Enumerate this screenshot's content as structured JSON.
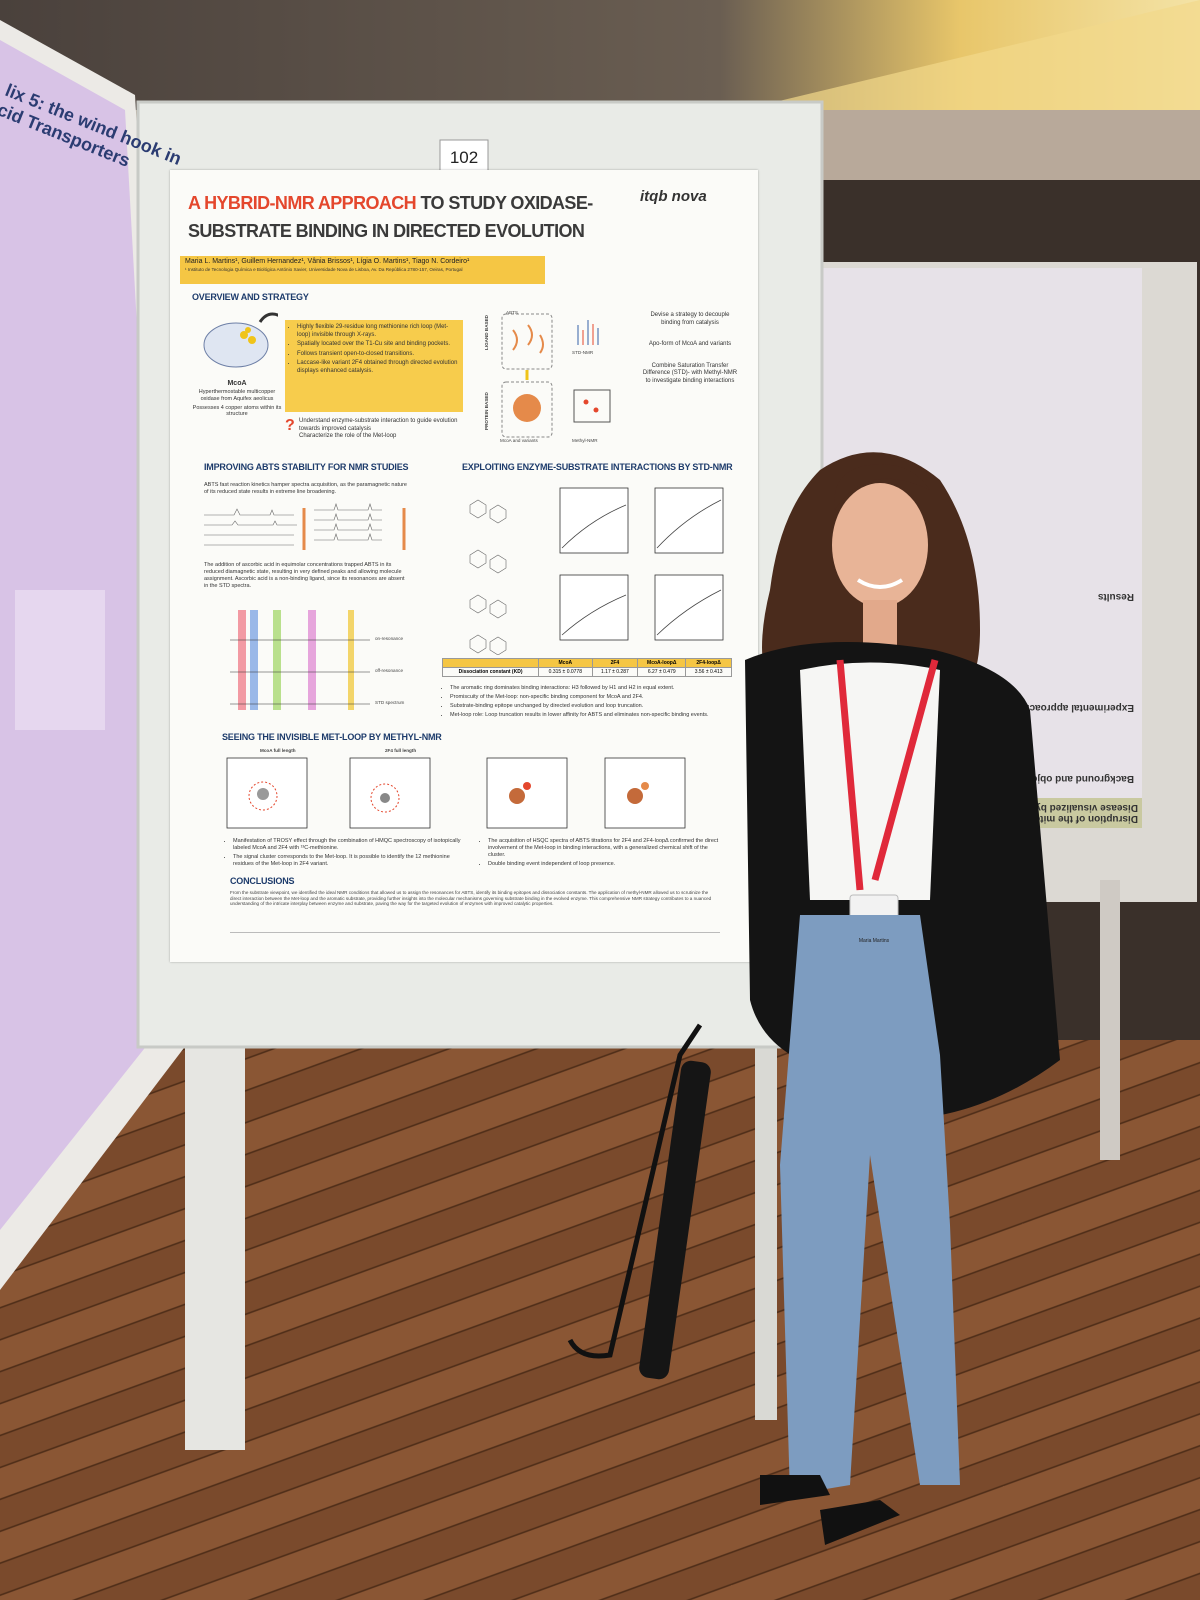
{
  "board_number": "102",
  "left_poster": {
    "title": [
      "lix 5: the wind hook in",
      "cid Transporters"
    ]
  },
  "poster": {
    "title": {
      "highlight": "A HYBRID-NMR APPROACH",
      "rest": "TO STUDY OXIDASE-SUBSTRATE BINDING IN DIRECTED EVOLUTION"
    },
    "logo": "itqb nova",
    "authors": "Maria L. Martins¹, Guillem Hernandez¹, Vânia Brissos¹, Lígia O. Martins¹, Tiago N. Cordeiro¹",
    "affiliation": "¹ Instituto de Tecnologia Química e Biológica António Xavier, Universidade Nova de Lisboa, Av. Da República 2780-157, Oeiras, Portugal",
    "overview": {
      "heading": "OVERVIEW AND STRATEGY",
      "protein": {
        "name": "McoA",
        "description": "Hyperthermostable multicopper oxidase from Aquifex aeolicus",
        "note": "Possesses 4 copper atoms within its structure"
      },
      "bullets": [
        "Highly flexible 29-residue long methionine rich loop (Met-loop) invisible through X-rays.",
        "Spatially located over the T1-Cu site and binding pockets.",
        "Follows transient open-to-closed transitions.",
        "Laccase-like variant 2F4 obtained through directed evolution displays enhanced catalysis."
      ],
      "questions": [
        "Understand enzyme-substrate interaction to guide evolution towards improved catalysis",
        "Characterize the role of the Met-loop"
      ],
      "strategy_labels": [
        "LIGAND BASED",
        "PROTEIN BASED"
      ],
      "figure_labels": [
        "ABTS",
        "STD-NMR",
        "McoA and variants",
        "Methyl-NMR"
      ],
      "strategy": [
        "Devise a strategy to decouple binding from catalysis",
        "Apo-form of McoA and variants",
        "Combine Saturation Transfer Difference (STD)- with Methyl-NMR to investigate binding interactions"
      ]
    },
    "abts": {
      "heading": "IMPROVING ABTS STABILITY FOR NMR STUDIES",
      "paragraphs": [
        "ABTS fast reaction kinetics hamper spectra acquisition, as the paramagnetic nature of its reduced state results in extreme line broadening.",
        "The addition of ascorbic acid in equimolar concentrations trapped ABTS in its reduced diamagnetic state, resulting in very defined peaks and allowing molecule assignment. Ascorbic acid is a non-binding ligand, since its resonances are absent in the STD spectra."
      ],
      "spectra_labels": [
        "on-resonance",
        "off-resonance",
        "STD spectrum"
      ]
    },
    "std": {
      "heading": "EXPLOITING ENZYME-SUBSTRATE INTERACTIONS BY STD-NMR",
      "table": {
        "header": "Dissociation constant (KD)",
        "columns": [
          "McoA",
          "2F4",
          "McoA-loopΔ",
          "2F4-loopΔ"
        ],
        "values": [
          "0.315 ± 0.0778",
          "1.17 ± 0.287",
          "6.27 ± 0.479",
          "3.56 ± 0.413"
        ]
      },
      "bullets": [
        "The aromatic ring dominates binding interactions: H3 followed by H1 and H2 in equal extent.",
        "Promiscuity of the Met-loop: non-specific binding component for McoA and 2F4.",
        "Substrate-binding epitope unchanged by directed evolution and loop truncation.",
        "Met-loop role: Loop truncation results in lower affinity for ABTS and eliminates non-specific binding events."
      ]
    },
    "methyl": {
      "heading": "SEEING THE INVISIBLE MET-LOOP BY METHYL-NMR",
      "panels": [
        "McoA full length",
        "2F4 full length"
      ],
      "bullets_left": [
        "Manifestation of TROSY effect through the combination of HMQC spectroscopy of isotopically labeled McoA and 2F4 with ¹³C-methionine.",
        "The signal cluster corresponds to the Met-loop. It is possible to identify the 12 methionine residues of the Met-loop in 2F4 variant."
      ],
      "bullets_right": [
        "The acquisition of HSQC spectra of ABTS titrations for 2F4 and 2F4-loopΔ confirmed the direct involvement of the Met-loop in binding interactions, with a generalized chemical shift of the cluster.",
        "Double binding event independent of loop presence."
      ]
    },
    "conclusions": {
      "heading": "CONCLUSIONS",
      "text": "From the substrate viewpoint, we identified the ideal NMR conditions that allowed us to assign the resonances for ABTS, identify its binding epitopes and dissociation constants. The application of methyl-NMR allowed us to scrutinize the direct interaction between the Met-loop and the aromatic substrate, providing further insights into the molecular mechanisms governing substrate binding in the evolved enzyme. This comprehensive NMR strategy contributes to a nuanced understanding of the intricate interplay between enzyme and substrate, paving the way for the targeted evolution of enzymes with improved catalytic properties."
    }
  },
  "right_poster": {
    "title": "Disruption of the mitochondrial network in a mouse model of Hu",
    "subtitle": "Disease visualized by in-tissue multiscale 3D electron micros",
    "sections": [
      "Background and objectives",
      "Experimental approach",
      "Results"
    ]
  },
  "badge": {
    "name": "Maria Martins"
  }
}
